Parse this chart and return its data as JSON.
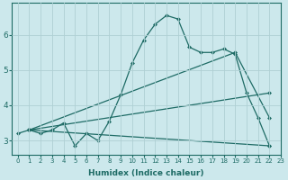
{
  "xlabel": "Humidex (Indice chaleur)",
  "background_color": "#cce8ec",
  "grid_color": "#afd0d4",
  "line_color": "#1e6b65",
  "xlim": [
    -0.5,
    23
  ],
  "ylim": [
    2.6,
    6.9
  ],
  "yticks": [
    3,
    4,
    5,
    6
  ],
  "xticks": [
    0,
    1,
    2,
    3,
    4,
    5,
    6,
    7,
    8,
    9,
    10,
    11,
    12,
    13,
    14,
    15,
    16,
    17,
    18,
    19,
    20,
    21,
    22,
    23
  ],
  "curve1": {
    "x": [
      0,
      1,
      2,
      3,
      4,
      5,
      6,
      7,
      8,
      9,
      10,
      11,
      12,
      13,
      14,
      15,
      16,
      17,
      18,
      19,
      20,
      21,
      22
    ],
    "y": [
      3.2,
      3.3,
      3.2,
      3.3,
      3.5,
      2.85,
      3.2,
      3.0,
      3.55,
      4.3,
      5.2,
      5.85,
      6.3,
      6.55,
      6.45,
      5.65,
      5.5,
      5.5,
      5.6,
      5.45,
      4.35,
      3.65,
      2.85
    ]
  },
  "line_upper": {
    "x": [
      1,
      19,
      22
    ],
    "y": [
      3.3,
      5.5,
      3.65
    ]
  },
  "line_mid": {
    "x": [
      1,
      22
    ],
    "y": [
      3.3,
      4.35
    ]
  },
  "line_lower": {
    "x": [
      1,
      22
    ],
    "y": [
      3.3,
      2.85
    ]
  }
}
